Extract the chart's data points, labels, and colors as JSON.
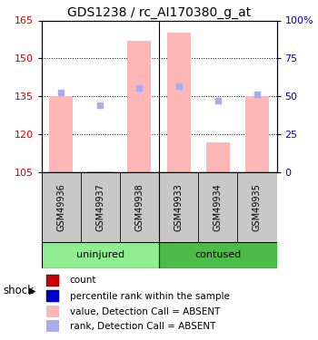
{
  "title": "GDS1238 / rc_AI170380_g_at",
  "samples": [
    "GSM49936",
    "GSM49937",
    "GSM49938",
    "GSM49933",
    "GSM49934",
    "GSM49935"
  ],
  "ylim": [
    105,
    165
  ],
  "yticks": [
    105,
    120,
    135,
    150,
    165
  ],
  "y2ticks": [
    0,
    25,
    50,
    75,
    100
  ],
  "y2tick_labels": [
    "0",
    "25",
    "50",
    "75",
    "100%"
  ],
  "bar_values": [
    135.0,
    105.5,
    157.0,
    160.0,
    117.0,
    135.0
  ],
  "bar_color": "#FFB6B6",
  "bar_width": 0.6,
  "rank_values": [
    136.5,
    131.5,
    138.5,
    139.0,
    133.5,
    136.0
  ],
  "rank_color": "#AAAAEE",
  "ylabel_color": "#CC0000",
  "y2label_color": "#0000BB",
  "title_fontsize": 10,
  "tick_fontsize": 8,
  "sample_fontsize": 7,
  "legend_fontsize": 7.5,
  "legend_items": [
    {
      "label": "count",
      "color": "#CC0000"
    },
    {
      "label": "percentile rank within the sample",
      "color": "#0000CC"
    },
    {
      "label": "value, Detection Call = ABSENT",
      "color": "#FFB6B6"
    },
    {
      "label": "rank, Detection Call = ABSENT",
      "color": "#AAAAEE"
    }
  ]
}
